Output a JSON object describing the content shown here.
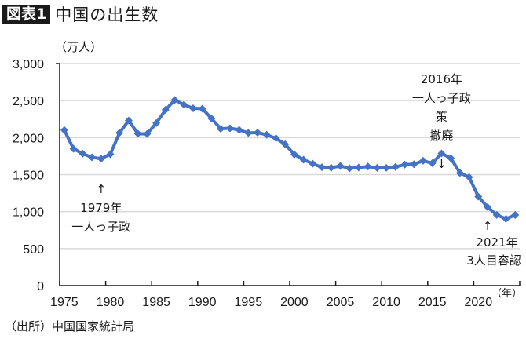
{
  "header": {
    "badge": "図表1",
    "title": "中国の出生数"
  },
  "y_unit": "（万人）",
  "x_unit": "（年）",
  "source": "（出所）中国国家統計局",
  "colors": {
    "line": "#4472c4",
    "grid": "#d9d9d9",
    "axis": "#1a1a1a"
  },
  "annotations": [
    {
      "arrow": "↑",
      "lines": [
        "1979年",
        "一人っ子政"
      ]
    },
    {
      "arrow": "↓",
      "lines": [
        "2016年",
        "一人っ子政",
        "策",
        "撤廃"
      ]
    },
    {
      "arrow": "↑",
      "lines": [
        "2021年",
        "3人目容認"
      ]
    }
  ],
  "chart_data": {
    "type": "line",
    "title": "中国の出生数",
    "xlabel": "（年）",
    "ylabel": "（万人）",
    "ylim": [
      0,
      3000
    ],
    "y_ticks": [
      "0",
      "500",
      "1,000",
      "1,500",
      "2,000",
      "2,500",
      "3,000"
    ],
    "x_ticks": [
      "1975",
      "1980",
      "1985",
      "1990",
      "1995",
      "2000",
      "2005",
      "2010",
      "2015",
      "2020"
    ],
    "grid": true,
    "legend": null,
    "x": [
      1975,
      1976,
      1977,
      1978,
      1979,
      1980,
      1981,
      1982,
      1983,
      1984,
      1985,
      1986,
      1987,
      1988,
      1989,
      1990,
      1991,
      1992,
      1993,
      1994,
      1995,
      1996,
      1997,
      1998,
      1999,
      2000,
      2001,
      2002,
      2003,
      2004,
      2005,
      2006,
      2007,
      2008,
      2009,
      2010,
      2011,
      2012,
      2013,
      2014,
      2015,
      2016,
      2017,
      2018,
      2019,
      2020,
      2021,
      2022,
      2023,
      2024
    ],
    "series": [
      {
        "name": "出生数（万人）",
        "values": [
          2102,
          1849,
          1783,
          1733,
          1715,
          1776,
          2064,
          2230,
          2052,
          2050,
          2196,
          2374,
          2508,
          2445,
          2396,
          2391,
          2258,
          2119,
          2126,
          2104,
          2063,
          2067,
          2038,
          1991,
          1909,
          1771,
          1702,
          1647,
          1599,
          1593,
          1617,
          1585,
          1595,
          1608,
          1591,
          1592,
          1604,
          1635,
          1640,
          1687,
          1655,
          1786,
          1723,
          1523,
          1465,
          1202,
          1062,
          956,
          902,
          954
        ]
      }
    ],
    "annotations": [
      {
        "x": 1979,
        "text": "1979年 一人っ子政"
      },
      {
        "x": 2016,
        "text": "2016年 一人っ子政策撤廃"
      },
      {
        "x": 2021,
        "text": "2021年 3人目容認"
      }
    ]
  }
}
